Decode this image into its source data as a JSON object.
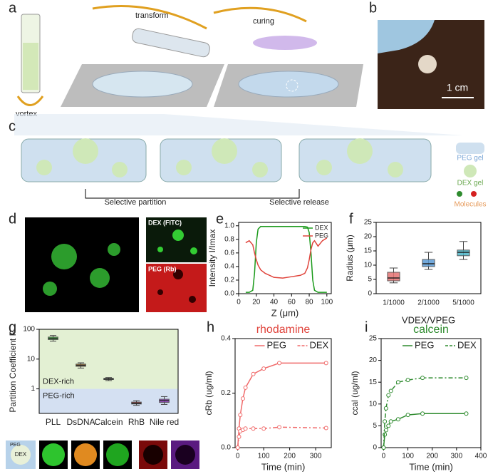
{
  "panel_labels": [
    "a",
    "b",
    "c",
    "d",
    "e",
    "f",
    "g",
    "h",
    "i"
  ],
  "diagram": {
    "transform": "transform",
    "curing": "curing",
    "vortex": "vortex",
    "scale_bar": "1 cm",
    "selective_partition": "Selective partition",
    "selective_release": "Selective release",
    "legend": [
      "PEG gel",
      "DEX gel",
      "Molecules"
    ],
    "d_labels": [
      "DEX (FITC)",
      "PEG (Rb)"
    ],
    "g_inset": [
      "PEG",
      "DEX"
    ]
  },
  "chart_data": [
    {
      "type": "line",
      "xlabel": "Z (μm)",
      "ylabel": "Intensity I/Imax",
      "legend": "upper right",
      "x": [
        8,
        12,
        16,
        18,
        20,
        22,
        25,
        30,
        40,
        50,
        60,
        70,
        75,
        78,
        80,
        82,
        84,
        86,
        90,
        95,
        100
      ],
      "series": [
        {
          "name": "DEX",
          "color": "#1a9a1a",
          "values": [
            0.02,
            0.02,
            0.05,
            0.3,
            0.75,
            0.95,
            0.99,
            0.99,
            0.99,
            0.99,
            0.99,
            0.99,
            0.99,
            0.98,
            0.9,
            0.6,
            0.2,
            0.05,
            0.02,
            0.02,
            0.02
          ]
        },
        {
          "name": "PEG",
          "color": "#e0443c",
          "values": [
            0.75,
            0.78,
            0.72,
            0.6,
            0.5,
            0.42,
            0.35,
            0.3,
            0.24,
            0.23,
            0.25,
            0.27,
            0.3,
            0.38,
            0.5,
            0.65,
            0.75,
            0.78,
            0.7,
            0.78,
            0.82
          ]
        }
      ],
      "xlim": [
        0,
        105
      ],
      "xticks": [
        0,
        20,
        40,
        60,
        80,
        100
      ],
      "ylim": [
        0,
        1.05
      ],
      "yticks": [
        {
          "value": 0,
          "label": "0.0"
        },
        0.2,
        0.4,
        0.6,
        0.8,
        {
          "value": 1,
          "label": "1.0"
        }
      ]
    },
    {
      "type": "box",
      "xlabel": "VDEX/VPEG",
      "ylabel": "Radius (μm)",
      "categories": [
        "1/1000",
        "2/1000",
        "5/1000"
      ],
      "colors": [
        "#e57373",
        "#5b9bd5",
        "#4db6c8"
      ],
      "boxes": [
        {
          "min": 3.8,
          "q1": 4.5,
          "median": 5.5,
          "q3": 7.5,
          "max": 9
        },
        {
          "min": 8.5,
          "q1": 9.5,
          "median": 10.5,
          "q3": 12,
          "max": 14.5
        },
        {
          "min": 12,
          "q1": 13.3,
          "median": 14.5,
          "q3": 15.3,
          "max": 18.3
        }
      ],
      "ylim": [
        0,
        25
      ],
      "yticks": [
        0,
        5,
        10,
        15,
        20,
        25
      ]
    },
    {
      "type": "box",
      "ylabel": "Partition Coefficient P",
      "yscale": "log",
      "regions": [
        "DEX-rich",
        "PEG-rich"
      ],
      "categories": [
        "PLL",
        "DsDNA",
        "Calcein",
        "RhB",
        "Nile red"
      ],
      "colors": [
        "#3fbf3f",
        "#d4892a",
        "#2e9e2e",
        "#c62020",
        "#9a3fc4"
      ],
      "boxes": [
        {
          "min": 40,
          "q1": 45,
          "median": 50,
          "q3": 55,
          "max": 62
        },
        {
          "min": 5,
          "q1": 5.7,
          "median": 6.2,
          "q3": 6.8,
          "max": 7.5
        },
        {
          "min": 1.9,
          "q1": 2.05,
          "median": 2.15,
          "q3": 2.25,
          "max": 2.4
        },
        {
          "min": 0.28,
          "q1": 0.31,
          "median": 0.33,
          "q3": 0.36,
          "max": 0.4
        },
        {
          "min": 0.3,
          "q1": 0.35,
          "median": 0.4,
          "q3": 0.45,
          "max": 0.55
        }
      ],
      "ylim": [
        0.15,
        100
      ],
      "yticks": [
        1,
        10,
        100
      ]
    },
    {
      "type": "line",
      "markers": true,
      "title": "rhodamine",
      "title_color": "#e0443c",
      "xlabel": "Time (min)",
      "ylabel": "cRb (ug/ml)",
      "legend": "upper center",
      "x": [
        0,
        5,
        10,
        20,
        30,
        60,
        100,
        160,
        340
      ],
      "series": [
        {
          "name": "PEG",
          "color": "#f06a6a",
          "values": [
            0,
            0.07,
            0.12,
            0.18,
            0.22,
            0.27,
            0.29,
            0.31,
            0.31
          ]
        },
        {
          "name": "DEX",
          "color": "#f06a6a",
          "linestyle": "dashdot",
          "values": [
            0,
            0.04,
            0.06,
            0.065,
            0.07,
            0.07,
            0.07,
            0.075,
            0.072
          ]
        }
      ],
      "xlim": [
        -10,
        360
      ],
      "xticks": [
        0,
        100,
        200,
        300
      ],
      "ylim": [
        0,
        0.4
      ],
      "yticks": [
        {
          "value": 0,
          "label": "0.0"
        },
        0.2,
        0.4
      ]
    },
    {
      "type": "line",
      "markers": true,
      "title": "calcein",
      "title_color": "#2e8b2e",
      "xlabel": "Time (min)",
      "ylabel": "ccal (ug/ml)",
      "legend": "upper center",
      "x": [
        0,
        5,
        10,
        20,
        30,
        60,
        100,
        160,
        340
      ],
      "series": [
        {
          "name": "PEG",
          "color": "#2e8b2e",
          "values": [
            0,
            3,
            4,
            5,
            6,
            6.5,
            7.5,
            7.8,
            7.8
          ]
        },
        {
          "name": "DEX",
          "color": "#2e8b2e",
          "linestyle": "dashdot",
          "values": [
            0,
            6,
            9,
            12,
            13,
            15,
            15.5,
            16,
            16
          ]
        }
      ],
      "xlim": [
        -10,
        400
      ],
      "xticks": [
        0,
        100,
        200,
        300,
        400
      ],
      "ylim": [
        0,
        25
      ],
      "yticks": [
        0,
        5,
        10,
        15,
        20,
        25
      ]
    }
  ]
}
